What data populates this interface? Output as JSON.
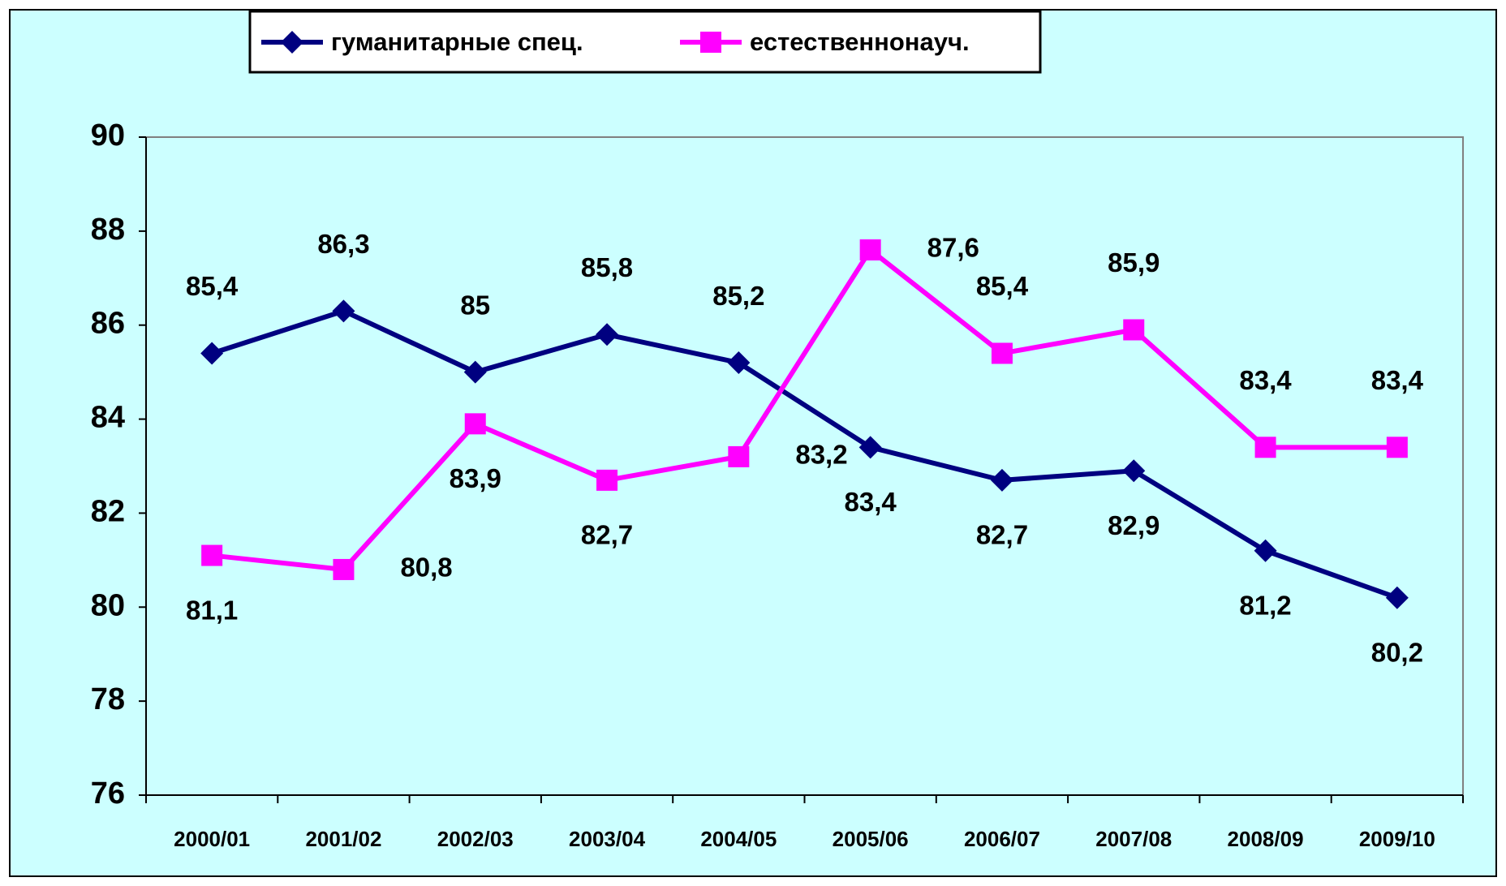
{
  "chart_data": {
    "type": "line",
    "categories": [
      "2000/01",
      "2001/02",
      "2002/03",
      "2003/04",
      "2004/05",
      "2005/06",
      "2006/07",
      "2007/08",
      "2008/09",
      "2009/10"
    ],
    "series": [
      {
        "name": "гуманитарные спец.",
        "color": "#000080",
        "marker": "diamond",
        "values": [
          85.4,
          86.3,
          85,
          85.8,
          85.2,
          83.4,
          82.7,
          82.9,
          81.2,
          80.2
        ],
        "value_labels": [
          "85,4",
          "86,3",
          "85",
          "85,8",
          "85,2",
          "83,4",
          "82,7",
          "82,9",
          "81,2",
          "80,2"
        ]
      },
      {
        "name": "естественнонауч.",
        "color": "#ff00ff",
        "marker": "square",
        "values": [
          81.1,
          80.8,
          83.9,
          82.7,
          83.2,
          87.6,
          85.4,
          85.9,
          83.4,
          83.4
        ],
        "value_labels": [
          "81,1",
          "80,8",
          "83,9",
          "82,7",
          "83,2",
          "87,6",
          "85,4",
          "85,9",
          "83,4",
          "83,4"
        ]
      }
    ],
    "ylim": [
      76,
      90
    ],
    "yticks": [
      76,
      78,
      80,
      82,
      84,
      86,
      88,
      90
    ],
    "legend": "top"
  }
}
